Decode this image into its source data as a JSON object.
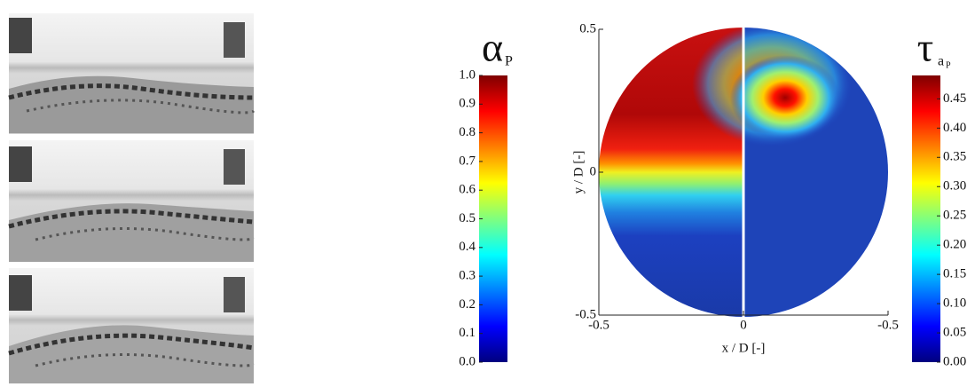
{
  "chart_data": [
    {
      "type": "colorbar",
      "title": "α",
      "title_subscript": "P",
      "colormap": "jet",
      "ylim": [
        0,
        1
      ],
      "yticks": [
        {
          "value": 0,
          "label": "0.0"
        },
        0.1,
        0.2,
        0.3,
        0.4,
        0.5,
        0.6,
        0.7,
        0.8,
        0.9,
        {
          "value": 1,
          "label": "1.0"
        }
      ]
    },
    {
      "type": "contour",
      "xlabel": "x / D [-]",
      "ylabel": "y / D [-]",
      "ylim": [
        -0.5,
        0.5
      ],
      "yticks": [
        -0.5,
        0,
        0.5
      ],
      "x_left": {
        "xlim": [
          -0.5,
          0
        ],
        "xticks": [
          -0.5,
          0
        ]
      },
      "x_right": {
        "xlim": [
          0,
          -0.5
        ],
        "xticks": [
          -0.5
        ]
      }
    },
    {
      "type": "colorbar",
      "title": "τ",
      "title_subscript": "a",
      "title_subsubscript": "P",
      "colormap": "jet",
      "ylim": [
        0,
        0.49
      ],
      "yticks": [
        {
          "value": 0,
          "label": "0.00"
        },
        0.05,
        {
          "value": 0.1,
          "label": "0.10"
        },
        0.15,
        {
          "value": 0.2,
          "label": "0.20"
        },
        0.25,
        {
          "value": 0.3,
          "label": "0.30"
        },
        0.35,
        {
          "value": 0.4,
          "label": "0.40"
        },
        0.45
      ]
    }
  ]
}
